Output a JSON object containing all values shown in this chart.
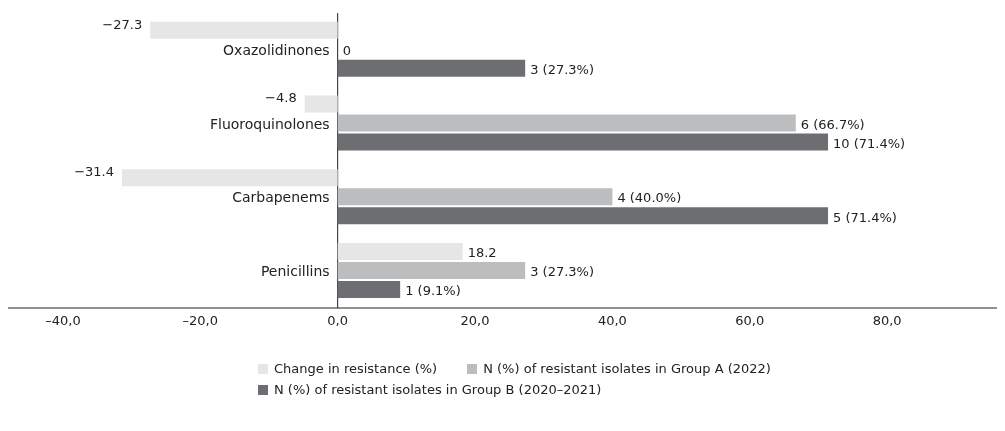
{
  "chart_data": {
    "type": "bar",
    "orientation": "horizontal",
    "categories": [
      "Oxazolidinones",
      "Fluoroquinolones",
      "Carbapenems",
      "Penicillins"
    ],
    "series": [
      {
        "name": "Change in resistance (%)",
        "color": "#e6e6e7",
        "values": [
          -27.3,
          -4.8,
          -31.4,
          18.2
        ],
        "value_labels": [
          "−27.3",
          "−4.8",
          "−31.4",
          "18.2"
        ]
      },
      {
        "name": "N (%) of resistant isolates in Group A (2022)",
        "color": "#bcbdbf",
        "values": [
          0,
          66.7,
          40.0,
          27.3
        ],
        "value_labels": [
          "0",
          "6 (66.7%)",
          "4 (40.0%)",
          "3 (27.3%)"
        ]
      },
      {
        "name": "N (%) of resistant isolates in Group B (2020–2021)",
        "color": "#6d6e71",
        "values": [
          27.3,
          71.4,
          71.4,
          9.1
        ],
        "value_labels": [
          "3 (27.3%)",
          "10 (71.4%)",
          "5 (71.4%)",
          "1 (9.1%)"
        ]
      }
    ],
    "xlim": [
      -48,
      96
    ],
    "xticks": [
      {
        "value": -40,
        "label": "–40,0"
      },
      {
        "value": -20,
        "label": "–20,0"
      },
      {
        "value": 0,
        "label": "0,0"
      },
      {
        "value": 20,
        "label": "20,0"
      },
      {
        "value": 40,
        "label": "40,0"
      },
      {
        "value": 60,
        "label": "60,0"
      },
      {
        "value": 80,
        "label": "80,0"
      }
    ],
    "grid": false,
    "legend": "bottom"
  }
}
